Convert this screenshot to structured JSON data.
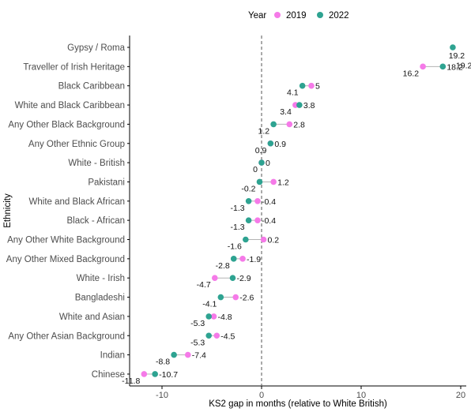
{
  "chart_data": {
    "type": "dumbbell",
    "xlabel": "KS2 gap in months (relative to White British)",
    "ylabel": "Ethnicity",
    "xlim": [
      -13,
      20.5
    ],
    "xticks": [
      -10,
      0,
      10,
      20
    ],
    "xtick_labels": [
      "-10",
      "0",
      "10",
      "20"
    ],
    "reference_line": 0,
    "legend": {
      "title": "Year",
      "position": "top",
      "entries": [
        {
          "name": "2019",
          "color": "#f57ae8"
        },
        {
          "name": "2022",
          "color": "#2ea391"
        }
      ]
    },
    "categories": [
      "Gypsy / Roma",
      "Traveller of Irish Heritage",
      "Black Caribbean",
      "White and Black Caribbean",
      "Any Other Black Background",
      "Any Other Ethnic Group",
      "White - British",
      "Pakistani",
      "White and Black African",
      "Black - African",
      "Any Other White Background",
      "Any Other Mixed Background",
      "White - Irish",
      "Bangladeshi",
      "White and Asian",
      "Any Other Asian Background",
      "Indian",
      "Chinese"
    ],
    "series": [
      {
        "name": "2019",
        "values": [
          null,
          16.2,
          5,
          3.4,
          2.8,
          0.9,
          0,
          1.2,
          -0.4,
          -0.4,
          0.2,
          -1.9,
          -4.7,
          -2.6,
          -4.8,
          -4.5,
          -7.4,
          -11.8
        ]
      },
      {
        "name": "2022",
        "values": [
          19.2,
          18.2,
          4.1,
          3.8,
          1.2,
          0.9,
          0,
          -0.2,
          -1.3,
          -1.3,
          -1.6,
          -2.8,
          -2.9,
          -4.1,
          -5.3,
          -5.3,
          -8.8,
          -10.7
        ]
      }
    ],
    "data_labels": [
      {
        "category": "Gypsy / Roma",
        "left": "",
        "right": "19.2"
      },
      {
        "category": "Traveller of Irish Heritage",
        "left": "16.2",
        "right": "18.2",
        "extra": "19.2"
      },
      {
        "category": "Black Caribbean",
        "left": "4.1",
        "right": "5"
      },
      {
        "category": "White and Black Caribbean",
        "left": "3.4",
        "right": "3.8"
      },
      {
        "category": "Any Other Black Background",
        "left": "1.2",
        "right": "2.8"
      },
      {
        "category": "Any Other Ethnic Group",
        "left": "0.9",
        "right": "0.9"
      },
      {
        "category": "White - British",
        "left": "0",
        "right": "0"
      },
      {
        "category": "Pakistani",
        "left": "-0.2",
        "right": "1.2"
      },
      {
        "category": "White and Black African",
        "left": "-1.3",
        "right": "-0.4"
      },
      {
        "category": "Black - African",
        "left": "-1.3",
        "right": "-0.4"
      },
      {
        "category": "Any Other White Background",
        "left": "-1.6",
        "right": "0.2"
      },
      {
        "category": "Any Other Mixed Background",
        "left": "-2.8",
        "right": "-1.9"
      },
      {
        "category": "White - Irish",
        "left": "-4.7",
        "right": "-2.9"
      },
      {
        "category": "Bangladeshi",
        "left": "-4.1",
        "right": "-2.6"
      },
      {
        "category": "White and Asian",
        "left": "-5.3",
        "right": "-4.8"
      },
      {
        "category": "Any Other Asian Background",
        "left": "-5.3",
        "right": "-4.5"
      },
      {
        "category": "Indian",
        "left": "-8.8",
        "right": "-7.4"
      },
      {
        "category": "Chinese",
        "left": "-11.8",
        "right": "-10.7"
      }
    ],
    "grid": false
  }
}
